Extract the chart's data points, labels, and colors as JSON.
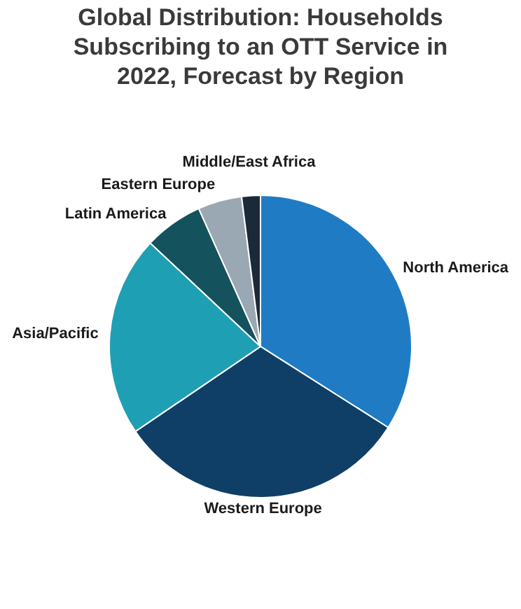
{
  "chart_data": {
    "type": "pie",
    "title": "Global Distribution: Households Subscribing to an OTT Service in 2022, Forecast by Region",
    "categories": [
      "North America",
      "Western Europe",
      "Asia/Pacific",
      "Latin America",
      "Eastern Europe",
      "Middle/East Africa"
    ],
    "values": [
      34,
      31.5,
      21.5,
      6.3,
      4.7,
      2
    ],
    "colors": [
      "#1f7cc4",
      "#0f3f66",
      "#1f9fb3",
      "#14525e",
      "#9aa8b3",
      "#1b2a38"
    ],
    "legend": false
  }
}
